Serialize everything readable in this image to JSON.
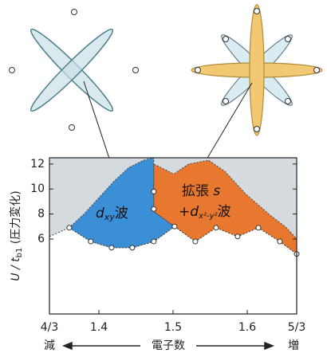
{
  "chart_data": {
    "type": "phase",
    "y_label": [
      "U / t",
      "b1",
      " (圧力変化)"
    ],
    "x_label": [
      "減",
      "電子数",
      "増"
    ],
    "xlim": [
      1.3333,
      1.6667
    ],
    "ylim": [
      0,
      12.5
    ],
    "xticks": [
      {
        "value": 1.3333,
        "label": "4/3"
      },
      1.4,
      1.5,
      1.6,
      {
        "value": 1.6667,
        "label": "5/3"
      }
    ],
    "yticks": [
      6,
      8,
      10,
      12
    ],
    "regions": [
      {
        "color": "#ffffff",
        "x": [
          1.3333,
          1.36,
          1.389,
          1.417,
          1.445,
          1.474,
          1.502,
          1.53,
          1.558,
          1.587,
          1.615,
          1.644,
          1.6667,
          1.6667,
          1.3333
        ],
        "y": [
          6.2,
          6.9,
          5.8,
          5.3,
          5.3,
          5.8,
          7.0,
          5.8,
          6.9,
          6.2,
          6.9,
          5.8,
          4.8,
          0,
          0
        ]
      },
      {
        "color": "#3a8fd6",
        "x": [
          1.36,
          1.389,
          1.417,
          1.445,
          1.474,
          1.502,
          1.474,
          1.474,
          1.46,
          1.44,
          1.42,
          1.4,
          1.38
        ],
        "y": [
          6.9,
          5.8,
          5.3,
          5.3,
          5.8,
          7.0,
          8.2,
          12.5,
          12.3,
          11.7,
          10.6,
          9.3,
          8.0
        ]
      },
      {
        "color": "#e8782f",
        "x": [
          1.502,
          1.53,
          1.558,
          1.587,
          1.615,
          1.644,
          1.6667,
          1.6667,
          1.653,
          1.631,
          1.598,
          1.57,
          1.548,
          1.521,
          1.501,
          1.474,
          1.474
        ],
        "y": [
          7.0,
          5.8,
          6.9,
          6.2,
          6.9,
          5.8,
          4.8,
          6.0,
          6.9,
          7.9,
          9.6,
          11.4,
          12.3,
          12.0,
          11.2,
          12.0,
          8.2
        ]
      }
    ],
    "points": {
      "x": [
        1.36,
        1.389,
        1.417,
        1.445,
        1.474,
        1.502,
        1.53,
        1.558,
        1.587,
        1.615,
        1.644,
        1.6667,
        1.474,
        1.474
      ],
      "y": [
        6.9,
        5.8,
        5.3,
        5.3,
        5.8,
        7.0,
        5.8,
        6.9,
        6.2,
        6.9,
        5.8,
        4.8,
        9.8,
        8.4
      ]
    },
    "phase_labels": [
      [
        "d",
        "xy",
        "波"
      ],
      [
        "拡張 ",
        "s"
      ],
      [
        "+d",
        "x²-y²",
        "波"
      ]
    ]
  }
}
